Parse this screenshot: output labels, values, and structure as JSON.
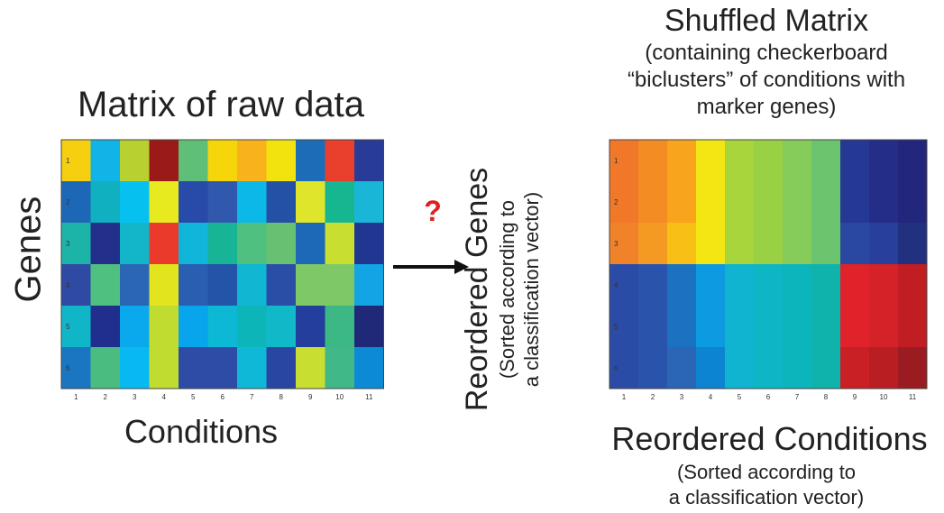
{
  "left_panel": {
    "title": "Matrix of raw data",
    "ylabel": "Genes",
    "xlabel": "Conditions"
  },
  "middle": {
    "question_mark": "?"
  },
  "right_panel": {
    "title": "Shuffled Matrix",
    "subtitle_line1": "(containing checkerboard",
    "subtitle_line2": "“biclusters” of conditions with",
    "subtitle_line3": "marker genes)",
    "ylabel_main": "Reordered Genes",
    "ylabel_sub_line1": "(Sorted according to",
    "ylabel_sub_line2": "a classification vector)",
    "xlabel": "Reordered Conditions",
    "xsub_line1": "(Sorted according to",
    "xsub_line2": "a classification vector)"
  },
  "chart_data": [
    {
      "type": "heatmap",
      "title": "Matrix of raw data",
      "xlabel": "Conditions",
      "ylabel": "Genes",
      "x": [
        "1",
        "2",
        "3",
        "4",
        "5",
        "6",
        "7",
        "8",
        "9",
        "10",
        "11"
      ],
      "y": [
        "1",
        "2",
        "3",
        "4",
        "5",
        "6"
      ],
      "colors": [
        [
          "#f5cf10",
          "#10b4e6",
          "#b8d030",
          "#9a1a18",
          "#5fbf78",
          "#f6d50a",
          "#f8b21c",
          "#f2e30e",
          "#1d6cb8",
          "#e8402c",
          "#283b96"
        ],
        [
          "#1d68b6",
          "#10b0c0",
          "#06c0f0",
          "#e8ea20",
          "#284aa8",
          "#3058ac",
          "#0cb8e8",
          "#2450a6",
          "#dfe52a",
          "#16b690",
          "#1ab6d8"
        ],
        [
          "#1cb4a8",
          "#22308c",
          "#12b6c8",
          "#ea3a2c",
          "#10b6da",
          "#18b496",
          "#50c080",
          "#68c072",
          "#1e68b8",
          "#c8de30",
          "#2036908"
        ],
        [
          "#2e4aa2",
          "#50c080",
          "#2a66b4",
          "#e2e41e",
          "#2a5eb0",
          "#2454a8",
          "#10b6d2",
          "#2a4ea6",
          "#7ec868",
          "#7ec868",
          "#12a4e4"
        ],
        [
          "#10b6c8",
          "#202e8e",
          "#0aa8ec",
          "#c0dc30",
          "#08a4ec",
          "#0cb8d4",
          "#0cb6b8",
          "#10b8c8",
          "#233e9c",
          "#3cb884",
          "#202878"
        ],
        [
          "#1a76c0",
          "#4abc80",
          "#08b8f2",
          "#c0dc30",
          "#2e4ca6",
          "#2e4ca6",
          "#10b8d8",
          "#2846a2",
          "#c8de30",
          "#40b888",
          "#0c8ad6"
        ]
      ]
    },
    {
      "type": "heatmap",
      "title": "Shuffled Matrix",
      "xlabel": "Reordered Conditions",
      "ylabel": "Reordered Genes",
      "x": [
        "1",
        "2",
        "3",
        "4",
        "5",
        "6",
        "7",
        "8",
        "9",
        "10",
        "11"
      ],
      "y": [
        "1",
        "2",
        "3",
        "4",
        "5",
        "6"
      ],
      "colors": [
        [
          "#f07828",
          "#f48c24",
          "#f8a41c",
          "#f4e612",
          "#a8d43c",
          "#9ad044",
          "#86cc5a",
          "#6cc46e",
          "#243894",
          "#242e88",
          "#22267c"
        ],
        [
          "#f07828",
          "#f48c24",
          "#f8a41c",
          "#f4e612",
          "#a8d43c",
          "#9ad044",
          "#86cc5a",
          "#6cc46e",
          "#243894",
          "#242e88",
          "#22267c"
        ],
        [
          "#f0822a",
          "#f49a22",
          "#f8c014",
          "#f4e612",
          "#a8d43c",
          "#9ad044",
          "#86cc5a",
          "#6cc46e",
          "#2a48a0",
          "#28409c",
          "#223080"
        ],
        [
          "#2a4ca6",
          "#2a54ac",
          "#1a72c0",
          "#0c9ae0",
          "#10b4d0",
          "#0cb6c4",
          "#0cb4bc",
          "#10b2ac",
          "#e0222a",
          "#d42228",
          "#c01e22"
        ],
        [
          "#2a4ca6",
          "#2a54ac",
          "#1a72c0",
          "#0c9ae0",
          "#10b4d0",
          "#0cb6c4",
          "#0cb4bc",
          "#10b2ac",
          "#e0222a",
          "#d42228",
          "#c01e22"
        ],
        [
          "#2a4ca6",
          "#2a54ac",
          "#2a66b4",
          "#0c84d0",
          "#10b4d0",
          "#0cb6c4",
          "#0cb4bc",
          "#10b2ac",
          "#c82024",
          "#b81e22",
          "#9a1c20"
        ]
      ]
    }
  ]
}
